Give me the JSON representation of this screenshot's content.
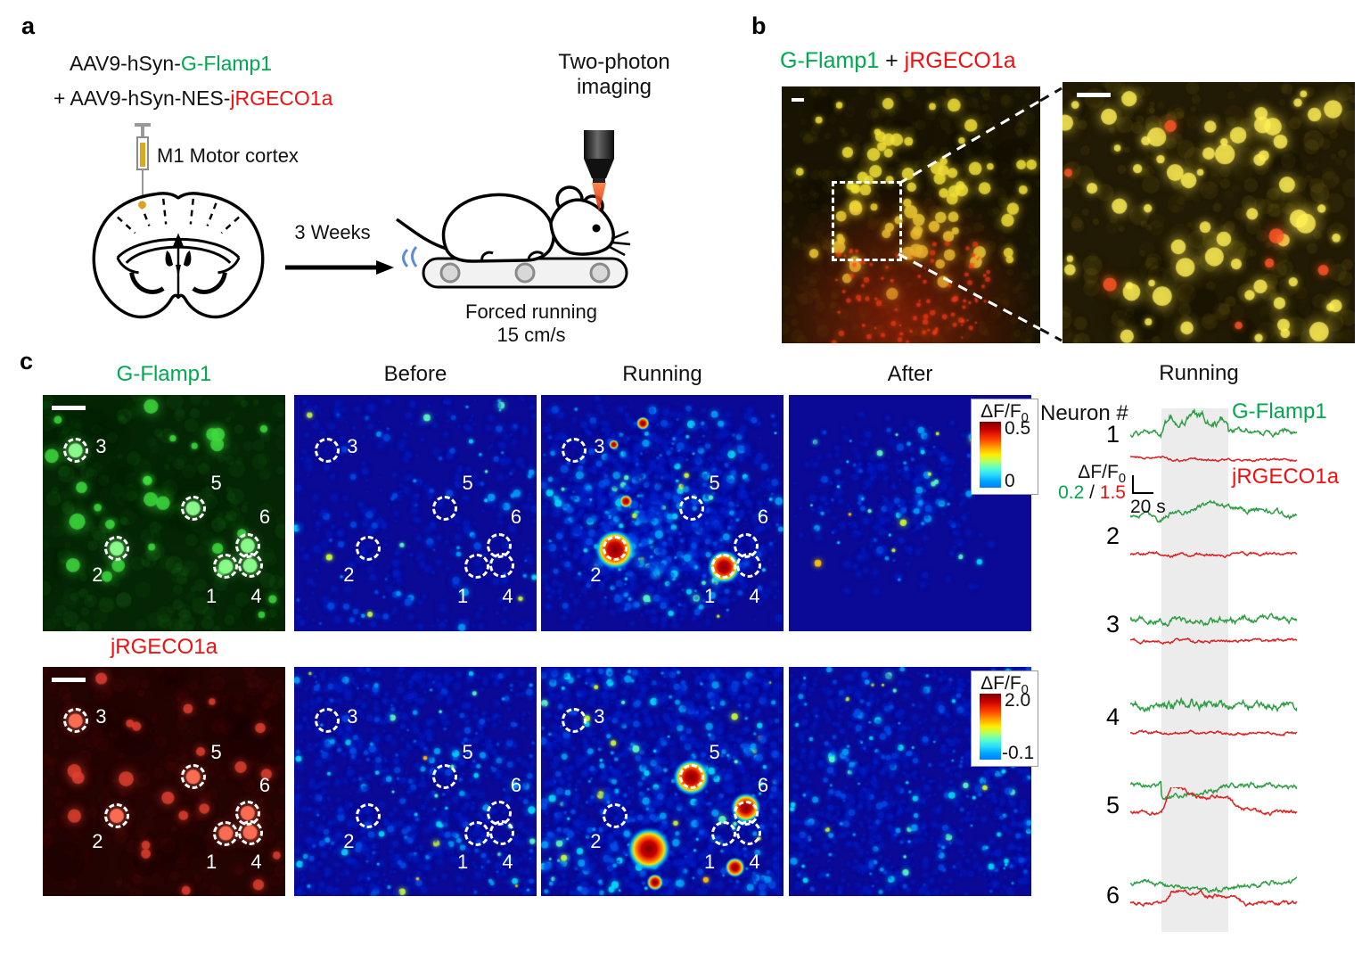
{
  "panels": {
    "a": {
      "label": "a",
      "virus1_prefix": "AAV9-hSyn-",
      "virus1_green": "G-Flamp1",
      "virus2_prefix": "+ AAV9-hSyn-NES-",
      "virus2_red": "jRGECO1a",
      "injection_site": "M1 Motor cortex",
      "interval": "3 Weeks",
      "imaging_line1": "Two-photon",
      "imaging_line2": "imaging",
      "treadmill_line1": "Forced running",
      "treadmill_line2": "15 cm/s"
    },
    "b": {
      "label": "b",
      "title_green": "G-Flamp1",
      "title_plus": " + ",
      "title_red": "jRGECO1a"
    },
    "c": {
      "label": "c",
      "col1": "G-Flamp1",
      "col2": "Before",
      "col3": "Running",
      "col4": "After",
      "row2_title": "jRGECO1a",
      "cb1": {
        "title_main": "ΔF/F",
        "title_sub": "0",
        "max": "0.5",
        "min": "0"
      },
      "cb2": {
        "title_main": "ΔF/F",
        "title_sub": "0",
        "max": "2.0",
        "min": "-0.1"
      },
      "rois": [
        "1",
        "2",
        "3",
        "4",
        "5",
        "6"
      ],
      "traces": {
        "title": "Running",
        "neuron_header": "Neuron #",
        "legend_green": "G-Flamp1",
        "legend_red": "jRGECO1a",
        "scale_main": "ΔF/F",
        "scale_sub": "0",
        "scale_green": "0.2",
        "scale_sep": " / ",
        "scale_red": "1.5",
        "time_scale": "20 s",
        "neurons": [
          "1",
          "2",
          "3",
          "4",
          "5",
          "6"
        ]
      }
    }
  },
  "colors": {
    "label_green": "#00a84f",
    "label_red": "#ee1111",
    "trace_green": "#2e9e44",
    "trace_red": "#e02020",
    "heatmap_background": "#0a0a96",
    "running_band": "#ececec"
  },
  "chart_data": {
    "type": "line",
    "title": "Running",
    "x_axis": "time (scale bar 20 s)",
    "y_axis": "ΔF/F0 (scale bar 0.2 G-Flamp1 / 1.5 jRGECO1a)",
    "shaded_region": "forced running period",
    "series_per_neuron": [
      {
        "neuron": "1",
        "G-Flamp1": "strong noisy increase during running, returns to baseline after",
        "jRGECO1a": "slight step decrease at running onset"
      },
      {
        "neuron": "2",
        "G-Flamp1": "slow broad increase peaking late in running",
        "jRGECO1a": "flat with small pre-run bump"
      },
      {
        "neuron": "3",
        "G-Flamp1": "no response, flat noisy",
        "jRGECO1a": "flat"
      },
      {
        "neuron": "4",
        "G-Flamp1": "no net response, larger fluctuations during running",
        "jRGECO1a": "flat"
      },
      {
        "neuron": "5",
        "G-Flamp1": "dip during running with slow recovery",
        "jRGECO1a": "large increase during running"
      },
      {
        "neuron": "6",
        "G-Flamp1": "shallow dip during running",
        "jRGECO1a": "moderate increase during running"
      }
    ],
    "colorbar_gflamp1": {
      "label": "ΔF/F0",
      "max": 0.5,
      "min": 0
    },
    "colorbar_jrgeco1a": {
      "label": "ΔF/F0",
      "max": 2.0,
      "min": -0.1
    }
  }
}
